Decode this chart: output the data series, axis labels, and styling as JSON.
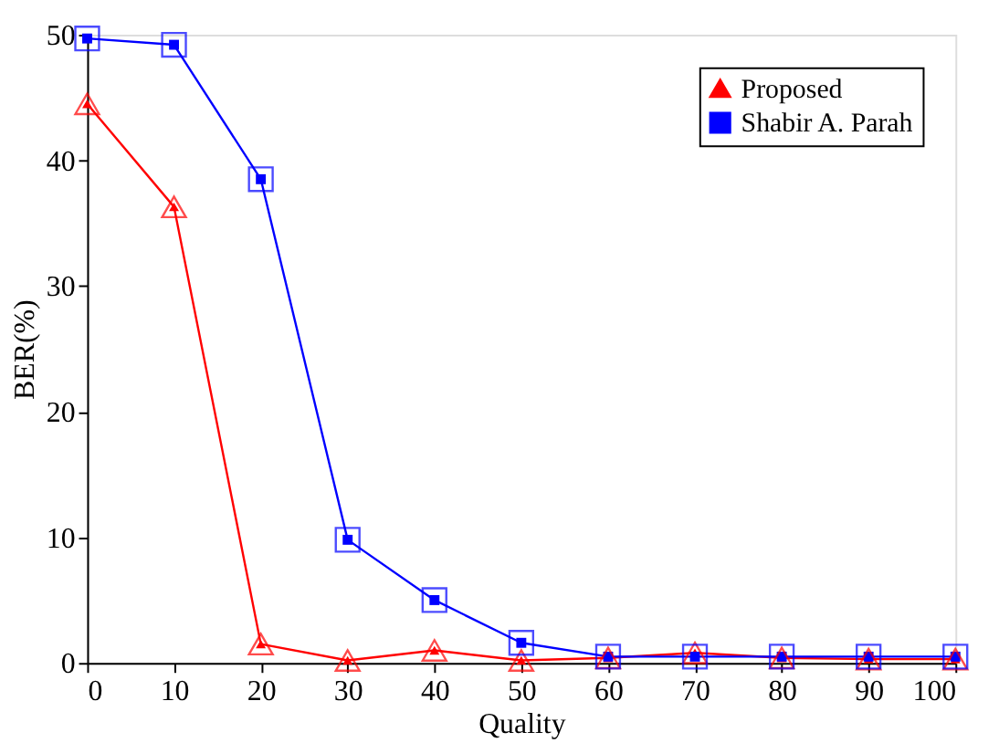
{
  "chart_data": {
    "type": "line",
    "xlabel": "Quality",
    "ylabel": "BER(%)",
    "x": [
      0,
      10,
      20,
      30,
      40,
      50,
      60,
      70,
      80,
      90,
      100
    ],
    "xlim": [
      0,
      100
    ],
    "xticks": [
      0,
      10,
      20,
      30,
      40,
      50,
      60,
      70,
      80,
      90,
      100
    ],
    "ylim": [
      0,
      50
    ],
    "yticks": [
      0,
      10,
      20,
      30,
      40,
      50
    ],
    "grid": false,
    "legend": "top right",
    "series": [
      {
        "name": "Proposed",
        "color": "#ff0000",
        "marker": "triangle",
        "values": [
          44.5,
          36.3,
          1.5,
          0.2,
          1.0,
          0.2,
          0.4,
          0.8,
          0.4,
          0.3,
          0.3
        ]
      },
      {
        "name": "Shabir A. Parah",
        "color": "#0000ff",
        "marker": "square",
        "values": [
          49.7,
          49.2,
          38.5,
          9.8,
          5.0,
          1.6,
          0.5,
          0.5,
          0.5,
          0.5,
          0.5
        ]
      }
    ]
  }
}
